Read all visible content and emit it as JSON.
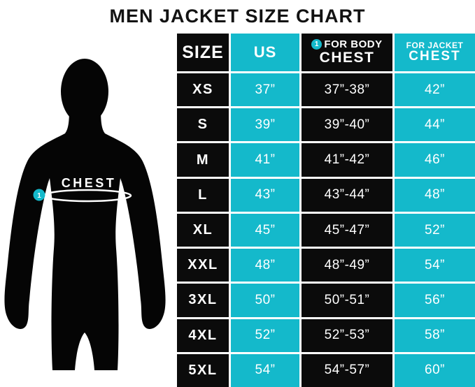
{
  "title": "MEN JACKET SIZE CHART",
  "colors": {
    "accent_cyan": "#14b9cb",
    "cell_black": "#0b0b0b",
    "background": "#ffffff",
    "text_white": "#ffffff"
  },
  "figure": {
    "silhouette": "man-front-silhouette",
    "label": "CHEST",
    "marker": "1"
  },
  "table": {
    "headers": [
      {
        "label": "SIZE",
        "style": "black"
      },
      {
        "label": "US",
        "style": "cyan"
      },
      {
        "line1": "FOR BODY",
        "line2": "CHEST",
        "badge": "1",
        "style": "black"
      },
      {
        "line1": "FOR JACKET",
        "line2": "CHEST",
        "style": "cyan"
      }
    ],
    "rows": [
      {
        "size": "XS",
        "us": "37”",
        "body_chest": "37”-38”",
        "jacket_chest": "42”"
      },
      {
        "size": "S",
        "us": "39”",
        "body_chest": "39”-40”",
        "jacket_chest": "44”"
      },
      {
        "size": "M",
        "us": "41”",
        "body_chest": "41”-42”",
        "jacket_chest": "46”"
      },
      {
        "size": "L",
        "us": "43”",
        "body_chest": "43”-44”",
        "jacket_chest": "48”"
      },
      {
        "size": "XL",
        "us": "45”",
        "body_chest": "45”-47”",
        "jacket_chest": "52”"
      },
      {
        "size": "XXL",
        "us": "48”",
        "body_chest": "48”-49”",
        "jacket_chest": "54”"
      },
      {
        "size": "3XL",
        "us": "50”",
        "body_chest": "50”-51”",
        "jacket_chest": "56”"
      },
      {
        "size": "4XL",
        "us": "52”",
        "body_chest": "52”-53”",
        "jacket_chest": "58”"
      },
      {
        "size": "5XL",
        "us": "54”",
        "body_chest": "54”-57”",
        "jacket_chest": "60”"
      }
    ]
  },
  "chart_data": {
    "type": "table",
    "title": "MEN JACKET SIZE CHART",
    "columns": [
      "SIZE",
      "US",
      "FOR BODY CHEST",
      "FOR JACKET CHEST"
    ],
    "rows": [
      [
        "XS",
        "37”",
        "37”-38”",
        "42”"
      ],
      [
        "S",
        "39”",
        "39”-40”",
        "44”"
      ],
      [
        "M",
        "41”",
        "41”-42”",
        "46”"
      ],
      [
        "L",
        "43”",
        "43”-44”",
        "48”"
      ],
      [
        "XL",
        "45”",
        "45”-47”",
        "52”"
      ],
      [
        "XXL",
        "48”",
        "48”-49”",
        "54”"
      ],
      [
        "3XL",
        "50”",
        "50”-51”",
        "56”"
      ],
      [
        "4XL",
        "52”",
        "52”-53”",
        "58”"
      ],
      [
        "5XL",
        "54”",
        "54”-57”",
        "60”"
      ]
    ]
  }
}
